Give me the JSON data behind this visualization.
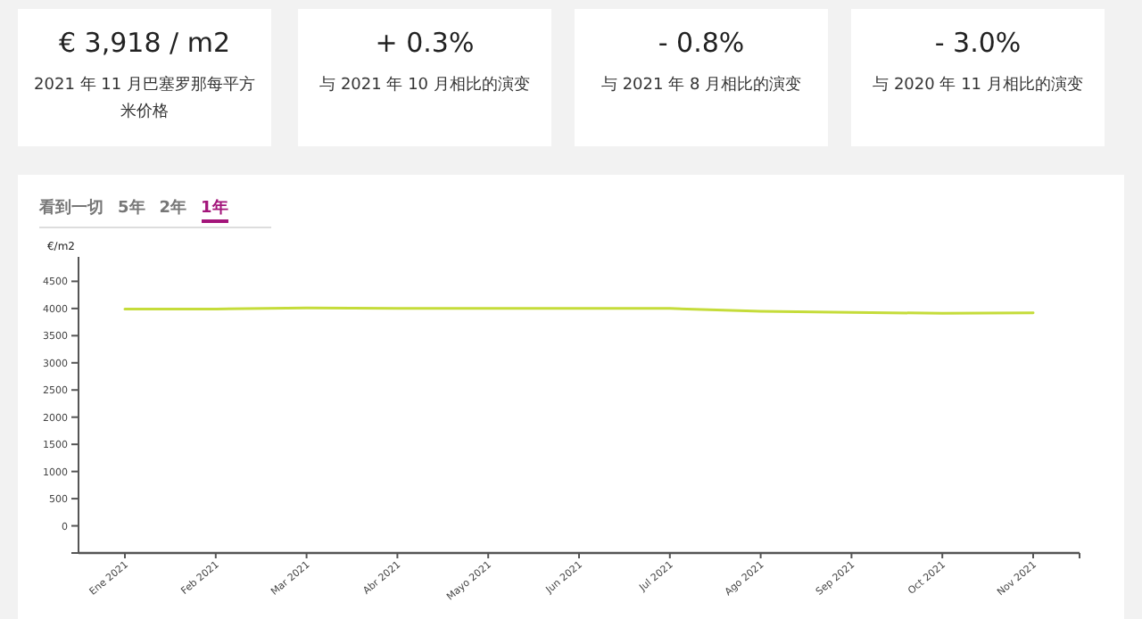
{
  "chart_data": [
    {
      "type": "other",
      "annotations": [
        "€ 3,918 / m2",
        "2021 年 11 月巴塞罗那每平方米价格",
        "+ 0.3%",
        "与 2021 年 10 月相比的演变",
        "- 0.8%",
        "与 2021 年 8 月相比的演变",
        "- 3.0%",
        "与 2020 年 11 月相比的演变"
      ]
    },
    {
      "type": "line",
      "ylabel": "€/m2",
      "annotations": [
        "看到一切",
        "5年",
        "2年",
        "1年"
      ],
      "categories": [
        "Ene 2021",
        "Feb 2021",
        "Mar 2021",
        "Abr 2021",
        "Mayo 2021",
        "Jun 2021",
        "Jul 2021",
        "Ago 2021",
        "Sep 2021",
        "Oct 2021",
        "Nov 2021"
      ],
      "series": [
        {
          "color": "#c5dc3a",
          "values": [
            3990,
            3990,
            4010,
            4000,
            4000,
            4000,
            4000,
            3950,
            3930,
            3910,
            3920
          ]
        }
      ],
      "ylim": [
        -500,
        4950
      ],
      "yticks": [
        {
          "value": -500,
          "label": null
        },
        0,
        500,
        1000,
        1500,
        2000,
        2500,
        3000,
        3500,
        4000,
        4500
      ],
      "grid": false,
      "marker": "none",
      "line_style": "solid"
    }
  ]
}
